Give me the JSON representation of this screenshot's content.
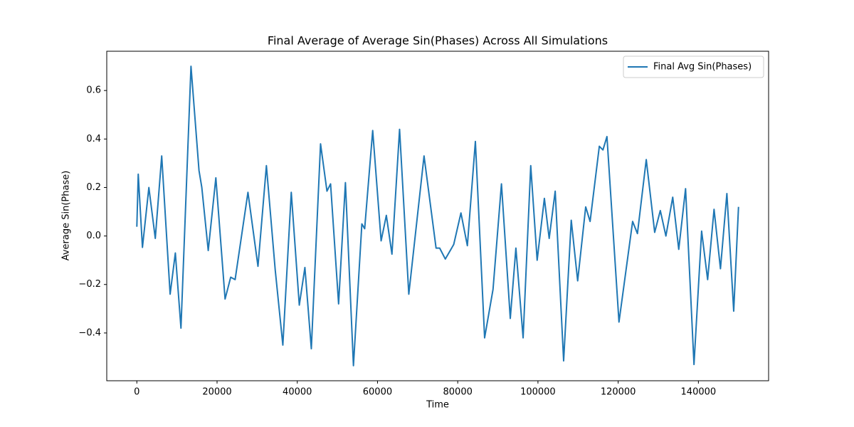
{
  "chart_data": {
    "type": "line",
    "title": "Final Average of Average Sin(Phases) Across All Simulations",
    "xlabel": "Time",
    "ylabel": "Average Sin(Phase)",
    "x": [
      0,
      350,
      1400,
      3000,
      4600,
      6200,
      8300,
      9600,
      11000,
      13500,
      15500,
      16200,
      17800,
      19700,
      22000,
      23400,
      24500,
      27700,
      30200,
      32300,
      34500,
      36400,
      38500,
      40500,
      41900,
      43500,
      45800,
      47400,
      48300,
      50300,
      52000,
      54000,
      56100,
      56800,
      58800,
      60900,
      62200,
      63600,
      65500,
      67800,
      71600,
      74600,
      75500,
      76900,
      79000,
      80800,
      82400,
      84400,
      86700,
      88800,
      90900,
      93100,
      94500,
      96300,
      98200,
      99800,
      101600,
      102800,
      104300,
      106400,
      108300,
      109900,
      111900,
      113000,
      115300,
      116200,
      117200,
      120200,
      123600,
      124800,
      127000,
      129100,
      130500,
      131900,
      133600,
      135100,
      136800,
      138900,
      140800,
      142300,
      143900,
      145500,
      147100,
      148800,
      150000
    ],
    "series": [
      {
        "name": "Final Avg Sin(Phases)",
        "color": "#1f77b4",
        "values": [
          0.038,
          0.255,
          -0.047,
          0.2,
          -0.01,
          0.33,
          -0.24,
          -0.07,
          -0.38,
          0.7,
          0.27,
          0.2,
          -0.06,
          0.24,
          -0.26,
          -0.17,
          -0.18,
          0.18,
          -0.125,
          0.29,
          -0.14,
          -0.45,
          0.18,
          -0.285,
          -0.13,
          -0.465,
          0.38,
          0.185,
          0.215,
          -0.28,
          0.22,
          -0.535,
          0.05,
          0.03,
          0.435,
          -0.02,
          0.085,
          -0.075,
          0.44,
          -0.24,
          0.33,
          -0.05,
          -0.05,
          -0.095,
          -0.035,
          0.095,
          -0.04,
          0.39,
          -0.42,
          -0.22,
          0.215,
          -0.34,
          -0.05,
          -0.42,
          0.29,
          -0.1,
          0.155,
          -0.01,
          0.185,
          -0.515,
          0.065,
          -0.185,
          0.12,
          0.06,
          0.37,
          0.355,
          0.41,
          -0.355,
          0.06,
          0.01,
          0.315,
          0.015,
          0.105,
          0.0,
          0.16,
          -0.055,
          0.195,
          -0.53,
          0.02,
          -0.18,
          0.11,
          -0.135,
          0.175,
          -0.31,
          0.12
        ]
      }
    ],
    "xlim": [
      -7500,
      157500
    ],
    "xticks": [
      0,
      20000,
      40000,
      60000,
      80000,
      100000,
      120000,
      140000
    ],
    "ylim": [
      -0.597,
      0.762
    ],
    "yticks": [
      {
        "value": -0.4,
        "label": "−0.4"
      },
      {
        "value": -0.2,
        "label": "−0.2"
      },
      {
        "value": 0,
        "label": "0.0"
      },
      0.2,
      0.4,
      0.6
    ],
    "legend": "upper right",
    "grid": false
  }
}
